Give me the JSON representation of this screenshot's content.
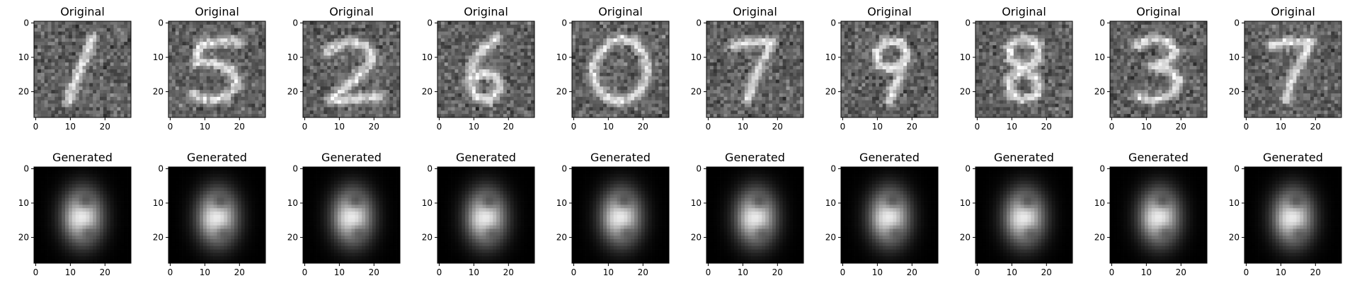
{
  "chart_data": {
    "type": "heatmap",
    "colormap": "gray",
    "image_size": [
      28,
      28
    ],
    "xticks": [
      0,
      10,
      20
    ],
    "yticks": [
      0,
      10,
      20
    ],
    "rows": [
      {
        "title": "Original",
        "kind": "noisy-digit",
        "panels": [
          {
            "title": "Original",
            "digit": "1"
          },
          {
            "title": "Original",
            "digit": "5"
          },
          {
            "title": "Original",
            "digit": "2"
          },
          {
            "title": "Original",
            "digit": "6"
          },
          {
            "title": "Original",
            "digit": "0"
          },
          {
            "title": "Original",
            "digit": "7"
          },
          {
            "title": "Original",
            "digit": "9"
          },
          {
            "title": "Original",
            "digit": "8"
          },
          {
            "title": "Original",
            "digit": "3"
          },
          {
            "title": "Original",
            "digit": "7"
          }
        ]
      },
      {
        "title": "Generated",
        "kind": "blurry-reconstruction",
        "panels": [
          {
            "title": "Generated",
            "digit": "8"
          },
          {
            "title": "Generated",
            "digit": "8"
          },
          {
            "title": "Generated",
            "digit": "8"
          },
          {
            "title": "Generated",
            "digit": "8"
          },
          {
            "title": "Generated",
            "digit": "8"
          },
          {
            "title": "Generated",
            "digit": "8"
          },
          {
            "title": "Generated",
            "digit": "8"
          },
          {
            "title": "Generated",
            "digit": "8"
          },
          {
            "title": "Generated",
            "digit": "8"
          },
          {
            "title": "Generated",
            "digit": "8"
          }
        ]
      }
    ]
  }
}
